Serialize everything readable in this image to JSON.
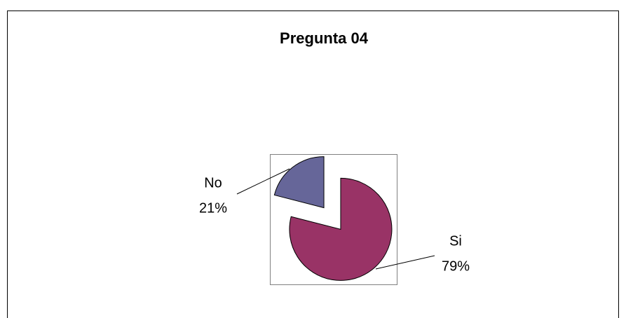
{
  "chart_data": {
    "type": "pie",
    "title": "Pregunta 04",
    "categories": [
      "Si",
      "No"
    ],
    "values": [
      79,
      21
    ],
    "value_labels": [
      "79%",
      "21%"
    ],
    "colors": [
      "#993366",
      "#666699"
    ]
  }
}
